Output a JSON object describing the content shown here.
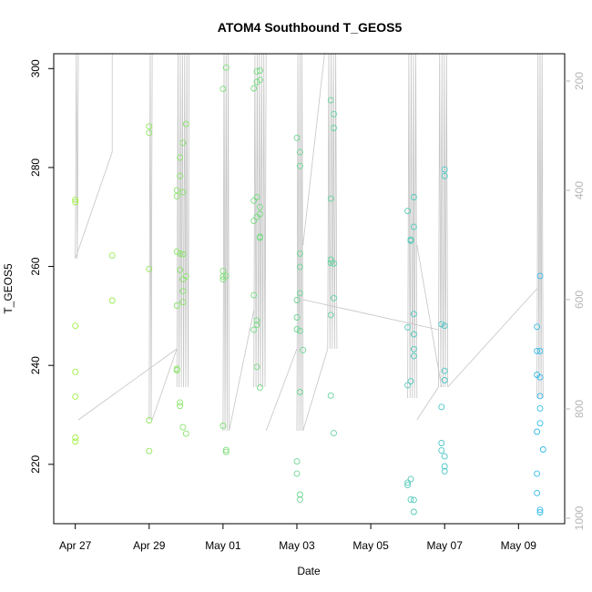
{
  "chart_data": {
    "type": "scatter",
    "title": "ATOM4 Southbound T_GEOS5",
    "xlabel": "Date",
    "ylabel": "T_GEOS5",
    "x_ticks": [
      "Apr 27",
      "Apr 29",
      "May 01",
      "May 03",
      "May 05",
      "May 07",
      "May 09"
    ],
    "y_ticks": [
      "220",
      "240",
      "260",
      "280",
      "300"
    ],
    "y2_ticks": [
      "200",
      "400",
      "600",
      "800",
      "1000"
    ],
    "xlim": [
      "2018-04-26 10:00",
      "2018-05-10 06:00"
    ],
    "ylim": [
      208,
      303
    ],
    "y2lim": [
      1010,
      150
    ],
    "y2_reversed": true,
    "y2_color": "#b5b5b5",
    "point_style": "open-circle",
    "color_scale": [
      "#a6f23c",
      "#2fb8f2"
    ],
    "series": [
      {
        "points": [
          [
            "2018-04-27 00:00",
            273.5
          ],
          [
            "2018-04-27 00:00",
            273.0
          ],
          [
            "2018-04-27 00:00",
            248.0
          ],
          [
            "2018-04-27 00:00",
            238.7
          ],
          [
            "2018-04-27 00:00",
            233.7
          ],
          [
            "2018-04-27 00:00",
            225.4
          ],
          [
            "2018-04-27 00:00",
            224.6
          ],
          [
            "2018-04-28 00:00",
            262.2
          ],
          [
            "2018-04-28 00:00",
            253.1
          ],
          [
            "2018-04-29 00:00",
            288.3
          ],
          [
            "2018-04-29 00:00",
            287.0
          ],
          [
            "2018-04-29 00:00",
            259.5
          ],
          [
            "2018-04-29 00:00",
            228.9
          ],
          [
            "2018-04-29 00:00",
            222.7
          ],
          [
            "2018-04-29 18:00",
            275.4
          ],
          [
            "2018-04-29 18:00",
            274.2
          ],
          [
            "2018-04-29 18:00",
            263.0
          ],
          [
            "2018-04-29 18:00",
            252.1
          ],
          [
            "2018-04-29 18:00",
            239.3
          ],
          [
            "2018-04-29 18:00",
            239.0
          ],
          [
            "2018-04-29 20:00",
            282.0
          ],
          [
            "2018-04-29 20:00",
            278.3
          ],
          [
            "2018-04-29 20:00",
            262.6
          ],
          [
            "2018-04-29 20:00",
            259.3
          ],
          [
            "2018-04-29 20:00",
            232.5
          ],
          [
            "2018-04-29 20:00",
            231.8
          ],
          [
            "2018-04-29 22:00",
            285.0
          ],
          [
            "2018-04-29 22:00",
            275.0
          ],
          [
            "2018-04-29 22:00",
            262.5
          ],
          [
            "2018-04-29 22:00",
            257.4
          ],
          [
            "2018-04-29 22:00",
            255.0
          ],
          [
            "2018-04-29 22:00",
            252.8
          ],
          [
            "2018-04-29 22:00",
            227.5
          ],
          [
            "2018-04-30 00:00",
            288.8
          ],
          [
            "2018-04-30 00:00",
            258.0
          ],
          [
            "2018-04-30 00:00",
            226.2
          ],
          [
            "2018-05-01 00:00",
            295.9
          ],
          [
            "2018-05-01 00:00",
            259.1
          ],
          [
            "2018-05-01 00:00",
            258.0
          ],
          [
            "2018-05-01 00:00",
            257.4
          ],
          [
            "2018-05-01 00:00",
            227.8
          ],
          [
            "2018-05-01 02:00",
            300.2
          ],
          [
            "2018-05-01 02:00",
            258.1
          ],
          [
            "2018-05-01 02:00",
            222.9
          ],
          [
            "2018-05-01 02:00",
            222.5
          ],
          [
            "2018-05-01 20:00",
            296.0
          ],
          [
            "2018-05-01 20:00",
            273.3
          ],
          [
            "2018-05-01 20:00",
            269.2
          ],
          [
            "2018-05-01 20:00",
            254.2
          ],
          [
            "2018-05-01 20:00",
            247.2
          ],
          [
            "2018-05-01 22:00",
            299.4
          ],
          [
            "2018-05-01 22:00",
            297.3
          ],
          [
            "2018-05-01 22:00",
            274.0
          ],
          [
            "2018-05-01 22:00",
            270.0
          ],
          [
            "2018-05-01 22:00",
            248.2
          ],
          [
            "2018-05-01 22:00",
            249.1
          ],
          [
            "2018-05-01 22:00",
            239.7
          ],
          [
            "2018-05-02 00:00",
            299.6
          ],
          [
            "2018-05-02 00:00",
            297.7
          ],
          [
            "2018-05-02 00:00",
            272.0
          ],
          [
            "2018-05-02 00:00",
            270.6
          ],
          [
            "2018-05-02 00:00",
            266.0
          ],
          [
            "2018-05-02 00:00",
            265.8
          ],
          [
            "2018-05-02 00:00",
            235.5
          ],
          [
            "2018-05-03 00:00",
            286.0
          ],
          [
            "2018-05-03 00:00",
            253.2
          ],
          [
            "2018-05-03 00:00",
            249.7
          ],
          [
            "2018-05-03 00:00",
            247.3
          ],
          [
            "2018-05-03 00:00",
            220.6
          ],
          [
            "2018-05-03 00:00",
            218.1
          ],
          [
            "2018-05-03 02:00",
            283.1
          ],
          [
            "2018-05-03 02:00",
            280.3
          ],
          [
            "2018-05-03 02:00",
            262.6
          ],
          [
            "2018-05-03 02:00",
            259.9
          ],
          [
            "2018-05-03 02:00",
            254.6
          ],
          [
            "2018-05-03 02:00",
            247.0
          ],
          [
            "2018-05-03 02:00",
            234.6
          ],
          [
            "2018-05-03 02:00",
            213.9
          ],
          [
            "2018-05-03 02:00",
            212.9
          ],
          [
            "2018-05-03 04:00",
            243.1
          ],
          [
            "2018-05-03 22:00",
            293.6
          ],
          [
            "2018-05-03 22:00",
            273.7
          ],
          [
            "2018-05-03 22:00",
            261.4
          ],
          [
            "2018-05-03 22:00",
            260.7
          ],
          [
            "2018-05-03 22:00",
            250.2
          ],
          [
            "2018-05-03 22:00",
            233.9
          ],
          [
            "2018-05-04 00:00",
            290.8
          ],
          [
            "2018-05-04 00:00",
            288.0
          ],
          [
            "2018-05-04 00:00",
            260.6
          ],
          [
            "2018-05-04 00:00",
            253.6
          ],
          [
            "2018-05-04 00:00",
            226.3
          ]
        ]
      },
      {
        "points": [
          [
            "2018-05-06 00:00",
            271.2
          ],
          [
            "2018-05-06 00:00",
            247.7
          ],
          [
            "2018-05-06 00:00",
            236.0
          ],
          [
            "2018-05-06 00:00",
            216.3
          ],
          [
            "2018-05-06 00:00",
            215.8
          ],
          [
            "2018-05-06 02:00",
            265.2
          ],
          [
            "2018-05-06 02:00",
            265.4
          ],
          [
            "2018-05-06 02:00",
            236.8
          ],
          [
            "2018-05-06 02:00",
            217.0
          ],
          [
            "2018-05-06 02:00",
            212.9
          ],
          [
            "2018-05-06 04:00",
            274.0
          ],
          [
            "2018-05-06 04:00",
            268.0
          ],
          [
            "2018-05-06 04:00",
            250.4
          ],
          [
            "2018-05-06 04:00",
            246.3
          ],
          [
            "2018-05-06 04:00",
            243.3
          ],
          [
            "2018-05-06 04:00",
            241.9
          ],
          [
            "2018-05-06 04:00",
            212.8
          ],
          [
            "2018-05-06 04:00",
            210.4
          ],
          [
            "2018-05-06 22:00",
            248.3
          ],
          [
            "2018-05-06 22:00",
            231.6
          ],
          [
            "2018-05-06 22:00",
            224.3
          ],
          [
            "2018-05-06 22:00",
            222.8
          ],
          [
            "2018-05-07 00:00",
            279.6
          ],
          [
            "2018-05-07 00:00",
            278.3
          ],
          [
            "2018-05-07 00:00",
            248.0
          ],
          [
            "2018-05-07 00:00",
            238.9
          ],
          [
            "2018-05-07 00:00",
            237.0
          ],
          [
            "2018-05-07 00:00",
            221.6
          ],
          [
            "2018-05-07 00:00",
            219.6
          ],
          [
            "2018-05-07 00:00",
            218.6
          ],
          [
            "2018-05-09 12:00",
            247.8
          ],
          [
            "2018-05-09 12:00",
            242.9
          ],
          [
            "2018-05-09 12:00",
            238.1
          ],
          [
            "2018-05-09 12:00",
            226.6
          ],
          [
            "2018-05-09 12:00",
            218.1
          ],
          [
            "2018-05-09 12:00",
            214.2
          ],
          [
            "2018-05-09 14:00",
            258.1
          ],
          [
            "2018-05-09 14:00",
            242.9
          ],
          [
            "2018-05-09 14:00",
            237.6
          ],
          [
            "2018-05-09 14:00",
            233.8
          ],
          [
            "2018-05-09 14:00",
            231.3
          ],
          [
            "2018-05-09 14:00",
            228.3
          ],
          [
            "2018-05-09 14:00",
            210.8
          ],
          [
            "2018-05-09 14:00",
            210.3
          ],
          [
            "2018-05-09 16:00",
            223.0
          ]
        ]
      }
    ],
    "track": {
      "color": "#c4c4c4",
      "y2_units": true,
      "profiles": [
        {
          "t0": "2018-04-27 00:00",
          "t1": "2018-04-27 02:00",
          "top": 150,
          "bottom": 525
        },
        {
          "t0": "2018-04-29 00:00",
          "t1": "2018-04-29 02:00",
          "top": 150,
          "bottom": 820
        },
        {
          "t0": "2018-04-29 18:00",
          "t1": "2018-04-30 02:00",
          "top": 150,
          "bottom": 760
        },
        {
          "t0": "2018-05-01 00:00",
          "t1": "2018-05-01 04:00",
          "top": 150,
          "bottom": 840
        },
        {
          "t0": "2018-05-01 20:00",
          "t1": "2018-05-02 04:00",
          "top": 150,
          "bottom": 760
        },
        {
          "t0": "2018-05-03 00:00",
          "t1": "2018-05-03 04:00",
          "top": 150,
          "bottom": 840
        },
        {
          "t0": "2018-05-03 20:00",
          "t1": "2018-05-04 02:00",
          "top": 150,
          "bottom": 690
        },
        {
          "t0": "2018-05-06 00:00",
          "t1": "2018-05-06 06:00",
          "top": 150,
          "bottom": 780
        },
        {
          "t0": "2018-05-06 20:00",
          "t1": "2018-05-07 02:00",
          "top": 150,
          "bottom": 760
        },
        {
          "t0": "2018-05-09 12:00",
          "t1": "2018-05-09 16:00",
          "top": 150,
          "bottom": 780
        }
      ],
      "transits": [
        [
          [
            "2018-04-27 00:00",
            525
          ],
          [
            "2018-04-28 00:00",
            330
          ],
          [
            "2018-04-28 00:00",
            150
          ]
        ],
        [
          [
            "2018-04-27 02:00",
            820
          ],
          [
            "2018-04-29 18:00",
            690
          ]
        ],
        [
          [
            "2018-04-29 02:00",
            820
          ],
          [
            "2018-04-29 18:00",
            690
          ]
        ],
        [
          [
            "2018-05-01 04:00",
            840
          ],
          [
            "2018-05-01 20:00",
            620
          ]
        ],
        [
          [
            "2018-05-02 04:00",
            840
          ],
          [
            "2018-05-03 00:00",
            690
          ]
        ],
        [
          [
            "2018-05-03 04:00",
            500
          ],
          [
            "2018-05-03 18:00",
            150
          ]
        ],
        [
          [
            "2018-05-03 04:00",
            600
          ],
          [
            "2018-05-06 20:00",
            655
          ]
        ],
        [
          [
            "2018-05-03 04:00",
            840
          ],
          [
            "2018-05-03 20:00",
            690
          ]
        ],
        [
          [
            "2018-05-06 06:00",
            500
          ],
          [
            "2018-05-06 22:00",
            760
          ]
        ],
        [
          [
            "2018-05-06 06:00",
            820
          ],
          [
            "2018-05-06 20:00",
            760
          ]
        ],
        [
          [
            "2018-05-07 02:00",
            760
          ],
          [
            "2018-05-09 12:00",
            580
          ]
        ]
      ]
    }
  }
}
